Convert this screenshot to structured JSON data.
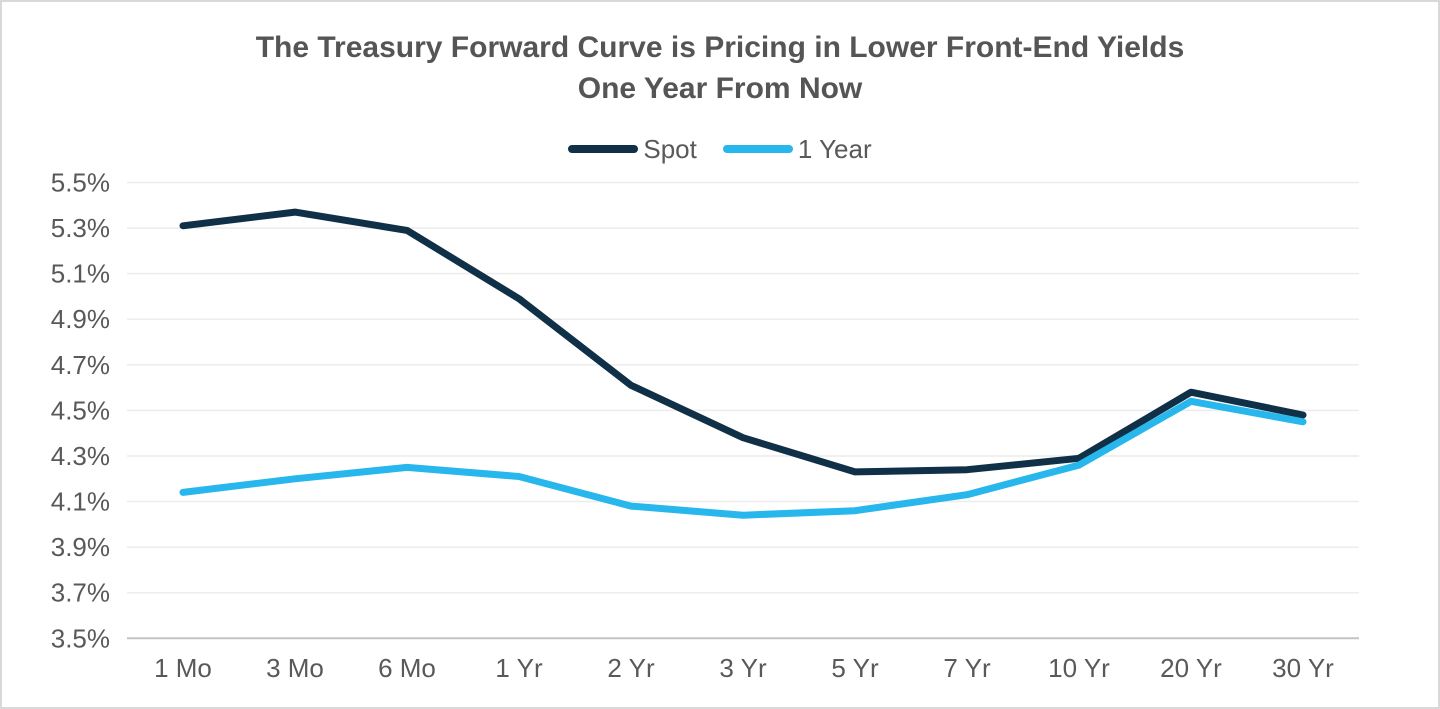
{
  "colors": {
    "background": "#ffffff",
    "border": "#d9d9d9",
    "title_text": "#555555",
    "tick_label": "#595959",
    "gridline": "#ececec",
    "axis_line": "#c3c3c3",
    "spot_series": "#103048",
    "one_year_series": "#27b7ec"
  },
  "chart_data": {
    "type": "line",
    "title": "The Treasury Forward Curve is Pricing in Lower Front-End Yields One Year From Now",
    "title_lines": [
      "The Treasury Forward Curve is Pricing in Lower Front-End Yields",
      "One Year From Now"
    ],
    "categories": [
      "1 Mo",
      "3 Mo",
      "6 Mo",
      "1 Yr",
      "2 Yr",
      "3 Yr",
      "5 Yr",
      "7 Yr",
      "10 Yr",
      "20 Yr",
      "30 Yr"
    ],
    "series": [
      {
        "name": "Spot",
        "color": "#103048",
        "values": [
          5.31,
          5.37,
          5.29,
          4.99,
          4.61,
          4.38,
          4.23,
          4.24,
          4.29,
          4.58,
          4.48
        ]
      },
      {
        "name": "1 Year",
        "color": "#27b7ec",
        "values": [
          4.14,
          4.2,
          4.25,
          4.21,
          4.08,
          4.04,
          4.06,
          4.13,
          4.26,
          4.54,
          4.45
        ]
      }
    ],
    "ylim": [
      3.5,
      5.5
    ],
    "ytick_step": 0.2,
    "ytick_format": "percent_one_decimal",
    "xlabel": "",
    "ylabel": "",
    "grid": true,
    "legend_position": "top"
  }
}
